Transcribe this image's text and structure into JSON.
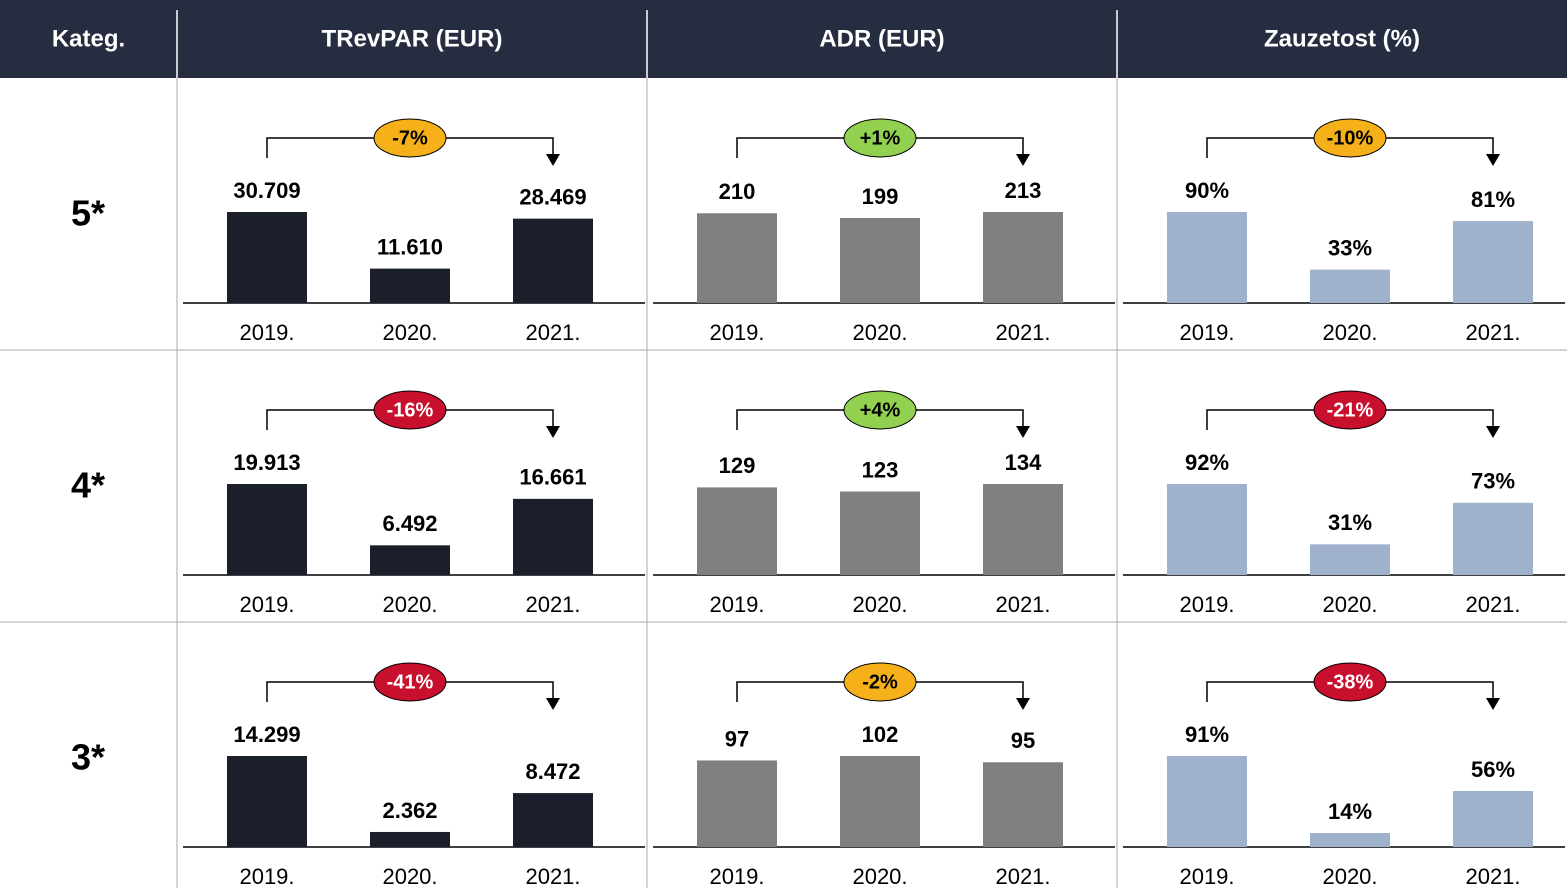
{
  "table": {
    "headers": [
      "Kateg.",
      "TRevPAR (EUR)",
      "ADR (EUR)",
      "Zauzetost (%)"
    ],
    "row_labels": [
      "5*",
      "4*",
      "3*"
    ]
  },
  "chart_data": [
    {
      "type": "bar",
      "categories": [
        "2019.",
        "2020.",
        "2021."
      ],
      "values": [
        30709,
        11610,
        28469
      ],
      "value_labels": [
        "30.709",
        "11.610",
        "28.469"
      ],
      "color": "#1a1f2b",
      "annotation": {
        "text": "-7%",
        "color": "#f5b01a",
        "text_color": "#000000"
      }
    },
    {
      "type": "bar",
      "categories": [
        "2019.",
        "2020.",
        "2021."
      ],
      "values": [
        210,
        199,
        213
      ],
      "color": "#808080",
      "annotation": {
        "text": "+1%",
        "color": "#92d050",
        "text_color": "#000000"
      }
    },
    {
      "type": "bar",
      "categories": [
        "2019.",
        "2020.",
        "2021."
      ],
      "values": [
        90,
        33,
        81
      ],
      "value_labels": [
        "90%",
        "33%",
        "81%"
      ],
      "color": "#9fb1cd",
      "annotation": {
        "text": "-10%",
        "color": "#f5b01a",
        "text_color": "#000000"
      }
    },
    {
      "type": "bar",
      "categories": [
        "2019.",
        "2020.",
        "2021."
      ],
      "values": [
        19913,
        6492,
        16661
      ],
      "value_labels": [
        "19.913",
        "6.492",
        "16.661"
      ],
      "color": "#1a1f2b",
      "annotation": {
        "text": "-16%",
        "color": "#c8102e",
        "text_color": "#ffffff"
      }
    },
    {
      "type": "bar",
      "categories": [
        "2019.",
        "2020.",
        "2021."
      ],
      "values": [
        129,
        123,
        134
      ],
      "color": "#808080",
      "annotation": {
        "text": "+4%",
        "color": "#92d050",
        "text_color": "#000000"
      }
    },
    {
      "type": "bar",
      "categories": [
        "2019.",
        "2020.",
        "2021."
      ],
      "values": [
        92,
        31,
        73
      ],
      "value_labels": [
        "92%",
        "31%",
        "73%"
      ],
      "color": "#9fb1cd",
      "annotation": {
        "text": "-21%",
        "color": "#c8102e",
        "text_color": "#ffffff"
      }
    },
    {
      "type": "bar",
      "categories": [
        "2019.",
        "2020.",
        "2021."
      ],
      "values": [
        14299,
        2362,
        8472
      ],
      "value_labels": [
        "14.299",
        "2.362",
        "8.472"
      ],
      "color": "#1a1f2b",
      "annotation": {
        "text": "-41%",
        "color": "#c8102e",
        "text_color": "#ffffff"
      }
    },
    {
      "type": "bar",
      "categories": [
        "2019.",
        "2020.",
        "2021."
      ],
      "values": [
        97,
        102,
        95
      ],
      "color": "#808080",
      "annotation": {
        "text": "-2%",
        "color": "#f5b01a",
        "text_color": "#000000"
      }
    },
    {
      "type": "bar",
      "categories": [
        "2019.",
        "2020.",
        "2021."
      ],
      "values": [
        91,
        14,
        56
      ],
      "value_labels": [
        "91%",
        "14%",
        "56%"
      ],
      "color": "#9fb1cd",
      "annotation": {
        "text": "-38%",
        "color": "#c8102e",
        "text_color": "#ffffff"
      }
    }
  ]
}
